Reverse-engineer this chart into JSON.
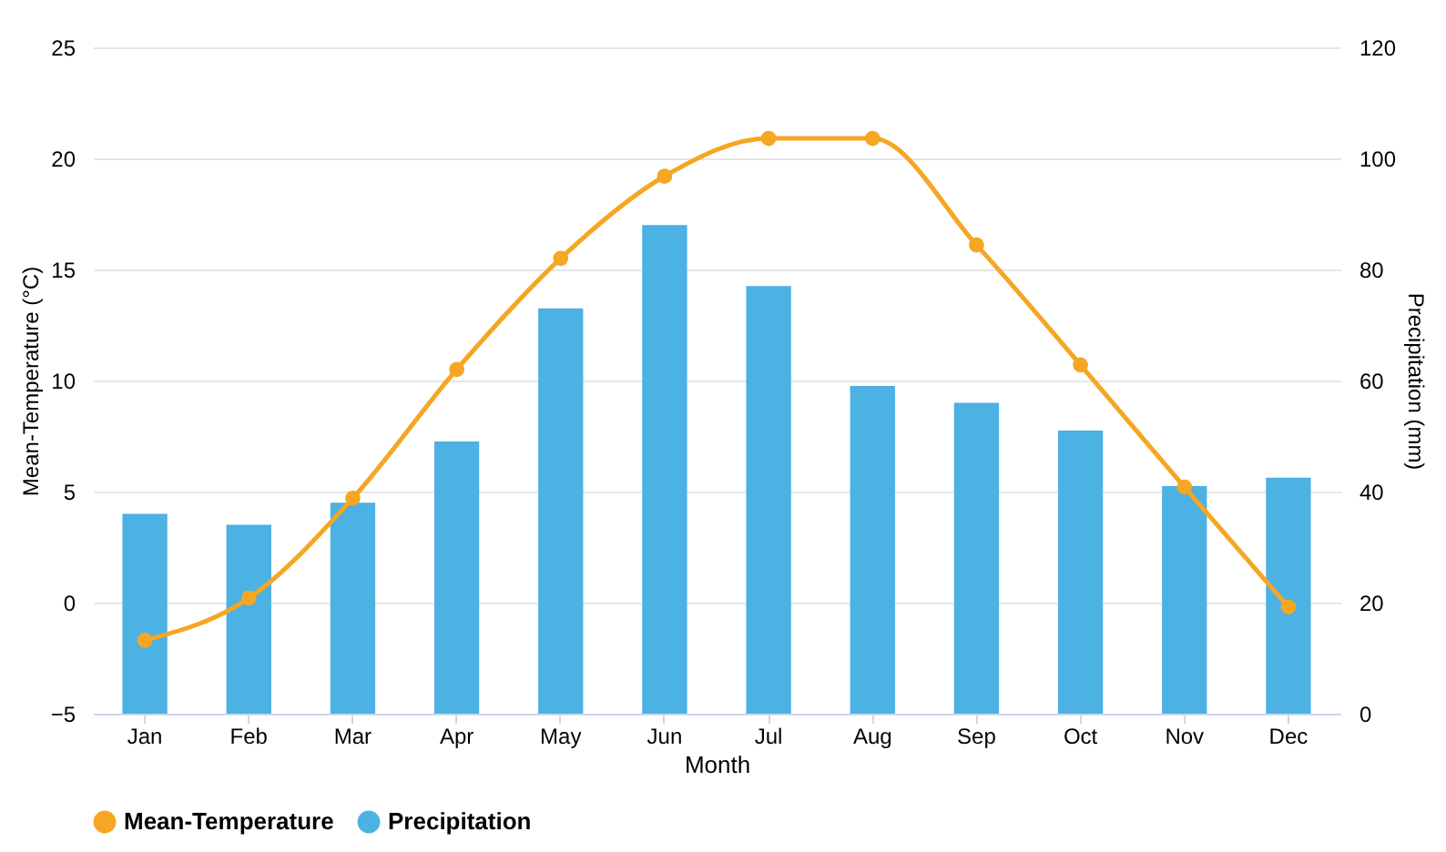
{
  "chart_data": {
    "type": "bar",
    "xlabel": "Month",
    "ylabel": "Mean-Temperature (°C)",
    "y2label": "Precipitation (mm)",
    "categories": [
      "Jan",
      "Feb",
      "Mar",
      "Apr",
      "May",
      "Jun",
      "Jul",
      "Aug",
      "Sep",
      "Oct",
      "Nov",
      "Dec"
    ],
    "series": [
      {
        "name": "Mean-Temperature",
        "type": "line",
        "axis": "y",
        "color": "#f5a623",
        "values": [
          -1.7,
          0.2,
          4.7,
          10.5,
          15.5,
          19.2,
          20.9,
          20.9,
          16.1,
          10.7,
          5.2,
          -0.2
        ]
      },
      {
        "name": "Precipitation",
        "axis": "y2",
        "color": "#4cb1e3",
        "values": [
          36,
          34,
          38,
          49,
          73,
          88,
          77,
          59,
          56,
          51,
          41,
          42.5
        ]
      }
    ],
    "ylim": [
      -5,
      25
    ],
    "yticks": [
      -5,
      0,
      5,
      10,
      15,
      20,
      25
    ],
    "y2lim": [
      0,
      120
    ],
    "y2ticks": [
      0,
      20,
      40,
      60,
      80,
      100,
      120
    ],
    "grid": "y",
    "legend": "bottom",
    "marker": "circle",
    "line_style": "solid"
  }
}
